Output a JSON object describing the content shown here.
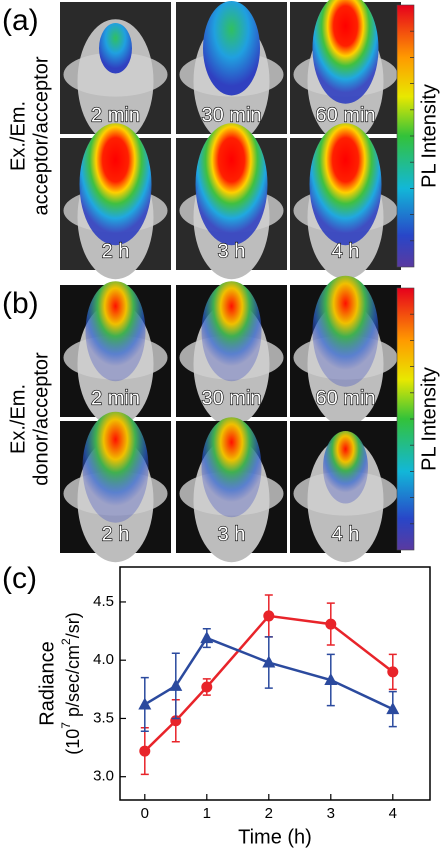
{
  "panels": [
    {
      "letter": "(a)",
      "side_label": [
        "Ex./Em.",
        "acceptor/acceptor"
      ],
      "colorbar_label": "PL Intensity",
      "images": [
        {
          "label": "2 min"
        },
        {
          "label": "30 min"
        },
        {
          "label": "60 min"
        },
        {
          "label": "2 h"
        },
        {
          "label": "3 h"
        },
        {
          "label": "4 h"
        }
      ]
    },
    {
      "letter": "(b)",
      "side_label": [
        "Ex./Em.",
        "donor/acceptor"
      ],
      "colorbar_label": "PL Intensity",
      "images": [
        {
          "label": "2 min"
        },
        {
          "label": "30 min"
        },
        {
          "label": "60 min"
        },
        {
          "label": "2 h"
        },
        {
          "label": "3 h"
        },
        {
          "label": "4 h"
        }
      ]
    }
  ],
  "chart_letter": "(c)",
  "chart_data": {
    "type": "line",
    "x_label": "Time (h)",
    "y_label": "Radiance",
    "y_unit": [
      "(10",
      "7",
      " p/sec/cm",
      "2",
      "/sr)"
    ],
    "x": [
      0,
      0.5,
      1,
      2,
      3,
      4
    ],
    "series": [
      {
        "color": "#e8242a",
        "marker": "circle",
        "values": [
          3.22,
          3.48,
          3.77,
          4.38,
          4.31,
          3.9
        ],
        "errors": [
          0.2,
          0.18,
          0.07,
          0.18,
          0.18,
          0.15
        ]
      },
      {
        "color": "#2b4a9e",
        "marker": "triangle",
        "values": [
          3.62,
          3.78,
          4.19,
          3.98,
          3.83,
          3.58
        ],
        "errors": [
          0.23,
          0.28,
          0.08,
          0.22,
          0.22,
          0.15
        ]
      }
    ],
    "xlim": [
      -0.4,
      4.6
    ],
    "xticks": [
      0,
      1,
      2,
      3,
      4
    ],
    "ylim": [
      2.8,
      4.8
    ],
    "yticks": [
      {
        "value": 3,
        "label": "3.0"
      },
      {
        "value": 3.5,
        "label": "3.5"
      },
      {
        "value": 4,
        "label": "4.0"
      },
      {
        "value": 4.5,
        "label": "4.5"
      }
    ]
  }
}
